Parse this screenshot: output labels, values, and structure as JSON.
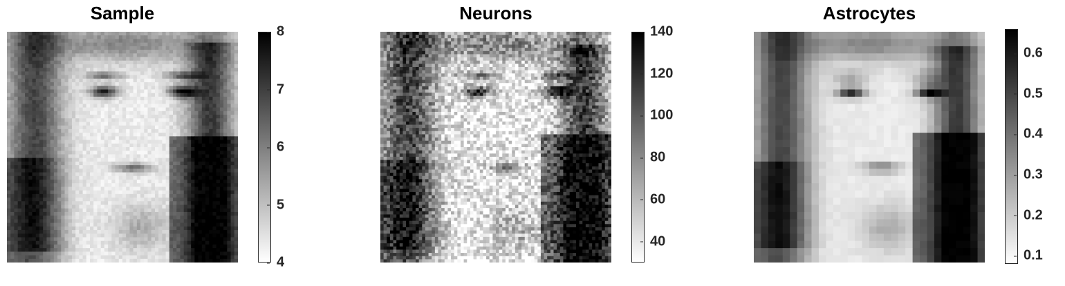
{
  "chart_data": [
    {
      "type": "heatmap",
      "title": "Sample",
      "colormap": "gray-reversed",
      "clim": [
        4,
        8
      ],
      "colorbar_ticks": [
        "4",
        "5",
        "6",
        "7",
        "8"
      ],
      "grid_resolution": "fine"
    },
    {
      "type": "heatmap",
      "title": "Neurons",
      "colormap": "gray-reversed",
      "clim": [
        30,
        140
      ],
      "colorbar_ticks": [
        "40",
        "60",
        "80",
        "100",
        "120",
        "140"
      ],
      "grid_resolution": "fine-noisy"
    },
    {
      "type": "heatmap",
      "title": "Astrocytes",
      "colormap": "gray-reversed",
      "clim": [
        0.08,
        0.66
      ],
      "colorbar_ticks": [
        "0.1",
        "0.2",
        "0.3",
        "0.4",
        "0.5",
        "0.6"
      ],
      "grid_resolution": "coarse"
    }
  ]
}
